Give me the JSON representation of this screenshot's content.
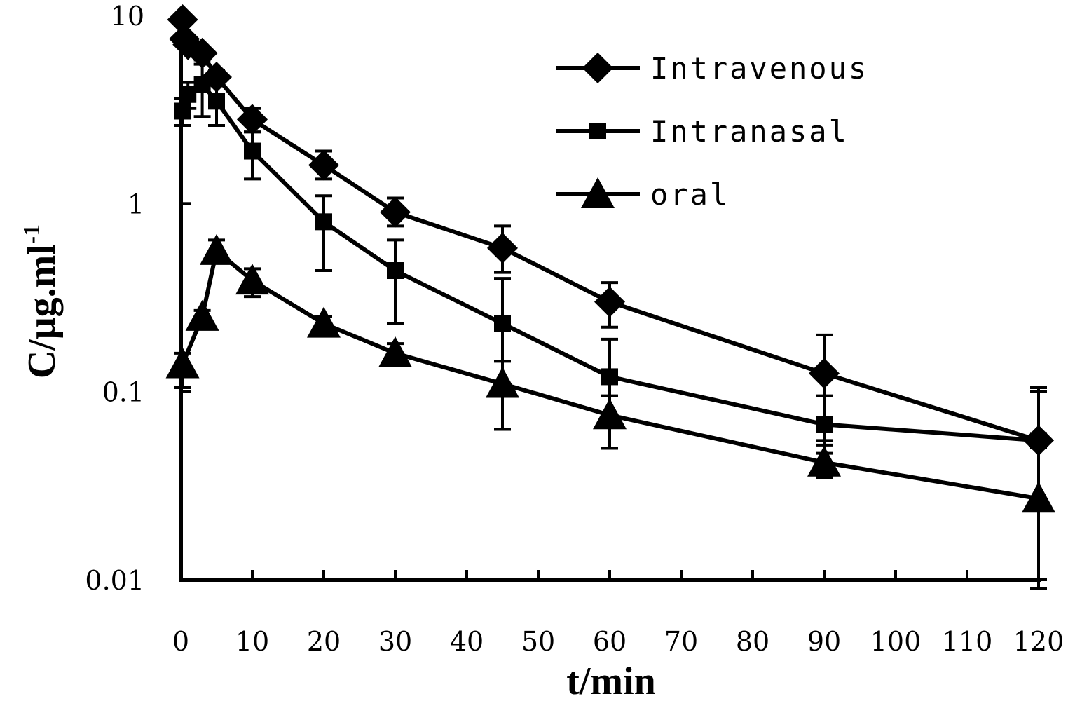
{
  "chart_data": {
    "type": "line",
    "title": "",
    "xlabel": "t/min",
    "ylabel": "C/μg.ml",
    "ylabel_sup": "-1",
    "y_scale": "log",
    "xlim": [
      0,
      120
    ],
    "ylim": [
      0.01,
      10
    ],
    "x_ticks": [
      0,
      10,
      20,
      30,
      40,
      50,
      60,
      70,
      80,
      90,
      100,
      110,
      120
    ],
    "y_ticks": [
      0.01,
      0.1,
      1,
      10
    ],
    "y_tick_labels": [
      "0.01",
      "0.1",
      "1",
      "10"
    ],
    "legend_position": "top-right",
    "series": [
      {
        "name": "Intravenous",
        "marker": "diamond",
        "x": [
          0.25,
          0.5,
          1,
          3,
          5,
          10,
          20,
          30,
          45,
          60,
          90,
          120
        ],
        "y": [
          9.5,
          7.5,
          7.0,
          6.3,
          4.7,
          2.8,
          1.6,
          0.9,
          0.58,
          0.3,
          0.125,
          0.055
        ],
        "err_upper": [
          0.6,
          0.5,
          0.5,
          0.5,
          0.4,
          0.4,
          0.3,
          0.17,
          0.18,
          0.08,
          0.075,
          0.045
        ],
        "err_lower": [
          0.6,
          0.5,
          0.5,
          0.5,
          0.4,
          0.4,
          0.25,
          0.14,
          0.15,
          0.08,
          0.07,
          0.045
        ]
      },
      {
        "name": "Intranasal",
        "marker": "square",
        "x": [
          0.25,
          1,
          3,
          5,
          10,
          20,
          30,
          45,
          60,
          90,
          120
        ],
        "y": [
          3.1,
          3.8,
          4.3,
          3.5,
          1.9,
          0.8,
          0.44,
          0.23,
          0.12,
          0.067,
          0.055
        ],
        "err_upper": [
          0.5,
          0.6,
          1.2,
          1.0,
          0.5,
          0.3,
          0.2,
          0.17,
          0.07,
          0.028,
          0.05
        ],
        "err_lower": [
          0.5,
          0.6,
          1.4,
          0.9,
          0.55,
          0.36,
          0.21,
          0.12,
          0.05,
          0.02,
          0.045
        ]
      },
      {
        "name": "oral",
        "marker": "triangle",
        "x": [
          0.25,
          3,
          5,
          10,
          20,
          30,
          45,
          60,
          90,
          120
        ],
        "y": [
          0.14,
          0.25,
          0.56,
          0.39,
          0.23,
          0.16,
          0.11,
          0.075,
          0.042,
          0.027
        ],
        "err_upper": [
          0.02,
          0.02,
          0.08,
          0.06,
          0.02,
          0.02,
          0.035,
          0.02,
          0.01,
          0.073
        ],
        "err_lower": [
          0.035,
          0.02,
          0.06,
          0.07,
          0.02,
          0.02,
          0.047,
          0.025,
          0.007,
          0.018
        ]
      }
    ]
  }
}
